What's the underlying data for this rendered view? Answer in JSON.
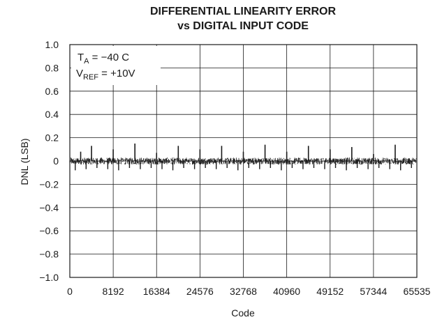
{
  "chart_data": {
    "type": "line",
    "title": "DIFFERENTIAL LINEARITY ERROR",
    "subtitle": "vs DIGITAL INPUT CODE",
    "xlabel": "Code",
    "ylabel": "DNL (LSB)",
    "xlim": [
      0,
      65535
    ],
    "ylim": [
      -1.0,
      1.0
    ],
    "xticks": [
      0,
      8192,
      16384,
      24576,
      32768,
      40960,
      49152,
      57344,
      65535
    ],
    "yticks": [
      1.0,
      0.8,
      0.6,
      0.4,
      0.2,
      0,
      -0.2,
      -0.4,
      -0.6,
      -0.8,
      -1.0
    ],
    "ytick_labels": [
      "1.0",
      "0.8",
      "0.6",
      "0.4",
      "0.2",
      "0",
      "−0.2",
      "−0.4",
      "−0.6",
      "−0.8",
      "−1.0"
    ],
    "xtick_labels": [
      "0",
      "8192",
      "16384",
      "24576",
      "32768",
      "40960",
      "49152",
      "57344",
      "65535"
    ],
    "grid": true,
    "series": [
      {
        "noise_band": [
          -0.03,
          0.03
        ],
        "positive_spikes": [
          {
            "x": 2048,
            "y": 0.08
          },
          {
            "x": 4096,
            "y": 0.13
          },
          {
            "x": 8192,
            "y": 0.1
          },
          {
            "x": 12288,
            "y": 0.15
          },
          {
            "x": 16384,
            "y": 0.07
          },
          {
            "x": 20480,
            "y": 0.13
          },
          {
            "x": 24576,
            "y": 0.1
          },
          {
            "x": 28672,
            "y": 0.13
          },
          {
            "x": 32768,
            "y": 0.08
          },
          {
            "x": 36864,
            "y": 0.14
          },
          {
            "x": 40960,
            "y": 0.08
          },
          {
            "x": 45056,
            "y": 0.13
          },
          {
            "x": 49152,
            "y": 0.1
          },
          {
            "x": 53248,
            "y": 0.12
          },
          {
            "x": 57344,
            "y": 0.06
          },
          {
            "x": 61440,
            "y": 0.14
          }
        ],
        "negative_spikes": [
          {
            "x": 1024,
            "y": -0.08
          },
          {
            "x": 3072,
            "y": -0.07
          },
          {
            "x": 5120,
            "y": -0.06
          },
          {
            "x": 7168,
            "y": -0.07
          },
          {
            "x": 9216,
            "y": -0.08
          },
          {
            "x": 11264,
            "y": -0.06
          },
          {
            "x": 13312,
            "y": -0.07
          },
          {
            "x": 15360,
            "y": -0.06
          },
          {
            "x": 17408,
            "y": -0.07
          },
          {
            "x": 19456,
            "y": -0.08
          },
          {
            "x": 21504,
            "y": -0.06
          },
          {
            "x": 23552,
            "y": -0.07
          },
          {
            "x": 25600,
            "y": -0.06
          },
          {
            "x": 27648,
            "y": -0.07
          },
          {
            "x": 29696,
            "y": -0.06
          },
          {
            "x": 31744,
            "y": -0.08
          },
          {
            "x": 33792,
            "y": -0.06
          },
          {
            "x": 35840,
            "y": -0.07
          },
          {
            "x": 37888,
            "y": -0.06
          },
          {
            "x": 39936,
            "y": -0.08
          },
          {
            "x": 41984,
            "y": -0.06
          },
          {
            "x": 44032,
            "y": -0.07
          },
          {
            "x": 46080,
            "y": -0.06
          },
          {
            "x": 48128,
            "y": -0.07
          },
          {
            "x": 50176,
            "y": -0.06
          },
          {
            "x": 52224,
            "y": -0.08
          },
          {
            "x": 54272,
            "y": -0.06
          },
          {
            "x": 56320,
            "y": -0.07
          },
          {
            "x": 58368,
            "y": -0.06
          },
          {
            "x": 60416,
            "y": -0.07
          },
          {
            "x": 62464,
            "y": -0.08
          },
          {
            "x": 64512,
            "y": -0.06
          }
        ],
        "color": "#1a1a1a"
      }
    ],
    "annotation": {
      "line1_main": "T",
      "line1_sub": "A",
      "line1_rest": " = −40 C",
      "line2_main": "V",
      "line2_sub": "REF",
      "line2_rest": " = +10V"
    },
    "colors": {
      "grid": "#1a1a1a",
      "axis": "#1a1a1a",
      "data": "#1a1a1a",
      "background": "#ffffff"
    }
  }
}
